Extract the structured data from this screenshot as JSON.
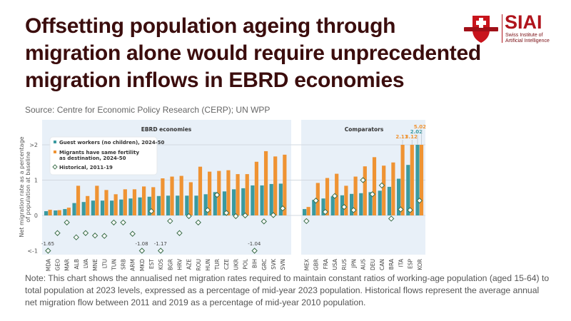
{
  "header": {
    "title": "Offsetting population ageing through migration alone would require unprecedented migration inflows in EBRD economies",
    "source": "Source: Centre for Economic Policy Research (CERP); UN WPP"
  },
  "logo": {
    "name": "SIAI",
    "subtitle_line1": "Swiss Institute of",
    "subtitle_line2": "Artificial Intelligence",
    "icon": "shield-cross-icon"
  },
  "note": "Note: This chart shows the annualised net migration rates required to maintain constant ratios of working-age population (aged 15-64) to total population at 2023 levels, expressed as a percentage of mid-year 2023 population. Historical flows represent the average annual net migration flow between 2011 and 2019 as a percentage of mid-year 2010 population.",
  "colors": {
    "guest": "#3a9aa0",
    "fertility": "#ef9333",
    "historical_stroke": "#3c6e4a",
    "panel_bg": "#e8f0f8",
    "title": "#3b0d0d"
  },
  "chart_data": {
    "type": "bar",
    "title": "",
    "ylabel": "Net migration rate as a percentage of population at baseline",
    "xlabel": "",
    "ylim": [
      -1,
      2
    ],
    "yticks": [
      {
        "value": 2,
        "label": ">2"
      },
      {
        "value": 1,
        "label": "1"
      },
      {
        "value": 0,
        "label": "0"
      },
      {
        "value": -1,
        "label": "<-1"
      }
    ],
    "grid": true,
    "legend_position": "top-left",
    "legend": [
      {
        "key": "guest",
        "label": "Guest workers (no children), 2024-50",
        "marker": "square"
      },
      {
        "key": "fertility",
        "label": "Migrants have same fertility",
        "label2": "as destination, 2024-50",
        "marker": "square"
      },
      {
        "key": "historical",
        "label": "Historical, 2011-19",
        "marker": "diamond"
      }
    ],
    "panels": [
      {
        "title": "EBRD economies",
        "categories": [
          "MDA",
          "GEO",
          "MAR",
          "ALB",
          "LVA",
          "MNE",
          "LTU",
          "TUN",
          "SRB",
          "ARM",
          "MKD",
          "EST",
          "KOS",
          "BGR",
          "HRV",
          "AZE",
          "ROU",
          "HUN",
          "TUR",
          "CZE",
          "UKR",
          "POL",
          "BIH",
          "GRC",
          "SVK",
          "SVN"
        ],
        "series": [
          {
            "name": "Guest workers (no children), 2024-50",
            "key": "guest",
            "values": [
              0.12,
              0.14,
              0.18,
              0.35,
              0.38,
              0.42,
              0.42,
              0.42,
              0.45,
              0.48,
              0.51,
              0.53,
              0.55,
              0.56,
              0.56,
              0.56,
              0.56,
              0.6,
              0.66,
              0.68,
              0.74,
              0.77,
              0.85,
              0.85,
              0.89,
              0.9
            ]
          },
          {
            "name": "Migrants have same fertility as destination, 2024-50",
            "key": "fertility",
            "values": [
              0.16,
              0.15,
              0.22,
              0.84,
              0.55,
              0.84,
              0.72,
              0.6,
              0.74,
              0.74,
              0.82,
              0.8,
              1.05,
              1.1,
              1.12,
              0.94,
              1.38,
              1.24,
              1.26,
              1.28,
              1.17,
              1.17,
              1.52,
              1.82,
              1.67,
              1.72
            ]
          },
          {
            "name": "Historical, 2011-19",
            "key": "historical",
            "values": [
              -1.65,
              -0.5,
              -0.2,
              -0.62,
              -0.5,
              -0.57,
              -0.58,
              -0.2,
              -0.2,
              -0.52,
              -1.08,
              0.12,
              -1.17,
              -0.16,
              -0.5,
              -0.02,
              -0.2,
              0.15,
              0.58,
              0.07,
              -0.02,
              0.0,
              -1.04,
              -0.17,
              0.01,
              0.2
            ]
          }
        ],
        "annotations": [
          {
            "category": "MDA",
            "text": "-1.65"
          },
          {
            "category": "MKD",
            "text": "-1.08"
          },
          {
            "category": "KOS",
            "text": "-1.17"
          },
          {
            "category": "BIH",
            "text": "-1.04"
          }
        ]
      },
      {
        "title": "Comparators",
        "categories": [
          "MEX",
          "GBR",
          "FRA",
          "USA",
          "RUS",
          "JPN",
          "AUS",
          "DEU",
          "CAN",
          "BRA",
          "ITA",
          "ESP",
          "KOR"
        ],
        "series": [
          {
            "name": "Guest workers (no children), 2024-50",
            "key": "guest",
            "values": [
              0.18,
              0.44,
              0.48,
              0.54,
              0.57,
              0.61,
              0.63,
              0.66,
              0.7,
              0.81,
              1.04,
              1.43,
              2.02
            ]
          },
          {
            "name": "Migrants have same fertility as destination, 2024-50",
            "key": "fertility",
            "values": [
              0.24,
              0.92,
              1.06,
              1.18,
              0.84,
              1.1,
              1.39,
              1.65,
              1.41,
              1.5,
              2.11,
              3.12,
              5.02
            ]
          },
          {
            "name": "Historical, 2011-19",
            "key": "historical",
            "values": [
              -0.16,
              0.42,
              0.1,
              0.55,
              0.24,
              0.15,
              1.0,
              0.6,
              0.85,
              -0.09,
              0.17,
              0.15,
              0.42
            ]
          }
        ],
        "annotations": [
          {
            "category": "ITA",
            "series": "fertility",
            "text": "2.11"
          },
          {
            "category": "ESP",
            "series": "fertility",
            "text": "3.12"
          },
          {
            "category": "KOR",
            "series": "guest",
            "text": "2.02"
          },
          {
            "category": "KOR",
            "series": "fertility",
            "text": "5.02"
          }
        ]
      }
    ]
  }
}
